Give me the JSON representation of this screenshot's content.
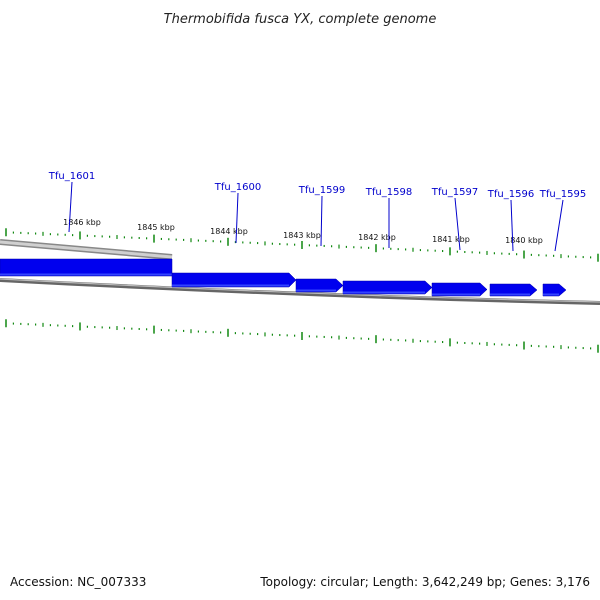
{
  "title": "Thermobifida fusca YX, complete genome",
  "footer": {
    "accession": "Accession: NC_007333",
    "summary": "Topology: circular; Length: 3,642,249 bp; Genes: 3,176"
  },
  "genes": [
    {
      "name": "Tfu_1601"
    },
    {
      "name": "Tfu_1600"
    },
    {
      "name": "Tfu_1599"
    },
    {
      "name": "Tfu_1598"
    },
    {
      "name": "Tfu_1597"
    },
    {
      "name": "Tfu_1596"
    },
    {
      "name": "Tfu_1595"
    }
  ],
  "kbp_labels": [
    "1846 kbp",
    "1845 kbp",
    "1844 kbp",
    "1843 kbp",
    "1842 kbp",
    "1841 kbp",
    "1840 kbp"
  ],
  "colors": {
    "gene_fill": "#0000ee",
    "gene_shade": "#3344ff",
    "label": "#0000cc",
    "tick": "#118811",
    "backbone": "#777777",
    "backbone_light": "#bbbbbb"
  }
}
